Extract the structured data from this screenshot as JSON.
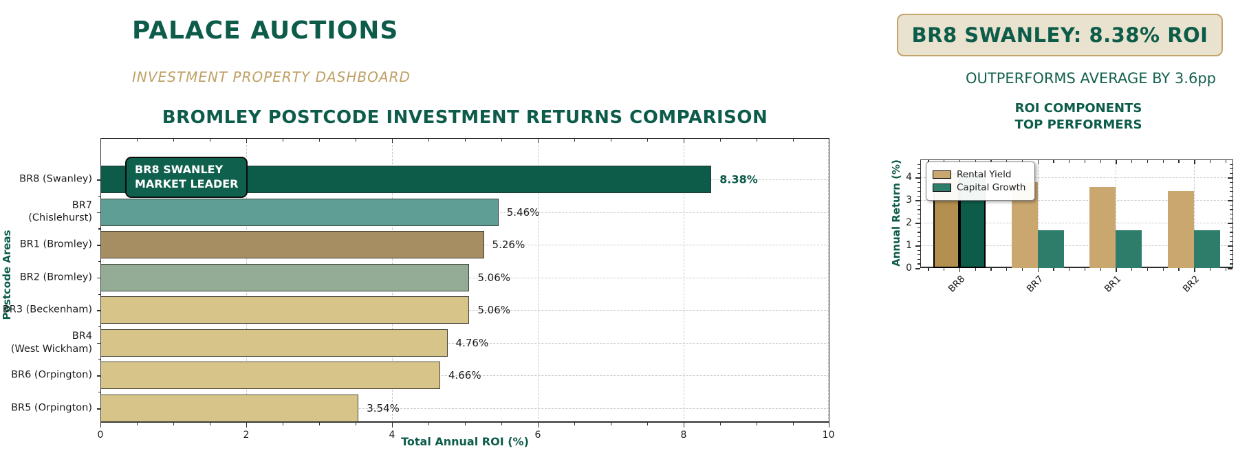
{
  "header": {
    "brand": "PALACE AUCTIONS",
    "subtitle": "INVESTMENT PROPERTY DASHBOARD",
    "highlight": "BR8 SWANLEY: 8.38% ROI",
    "highlight_note": "OUTPERFORMS AVERAGE BY 3.6pp"
  },
  "colors": {
    "brand_green": "#0d5c4a",
    "accent_tan": "#c3a469",
    "panel_bg": "#e9e2cf",
    "grid": "#c8c8c8",
    "bar_edge": "#2d2d28",
    "value_text": "#1c1c1c"
  },
  "chart_data": [
    {
      "type": "bar",
      "orientation": "horizontal",
      "title": "BROMLEY POSTCODE INVESTMENT RETURNS COMPARISON",
      "xlabel": "Total Annual ROI (%)",
      "ylabel": "Postcode Areas",
      "xlim": [
        0,
        10
      ],
      "xticks": [
        0,
        2,
        4,
        6,
        8,
        10
      ],
      "minor_tick_step": 0.5,
      "grid": "dashed",
      "categories": [
        "BR8 (Swanley)",
        "BR7\n(Chislehurst)",
        "BR1 (Bromley)",
        "BR2 (Bromley)",
        "BR3 (Beckenham)",
        "BR4\n(West Wickham)",
        "BR6 (Orpington)",
        "BR5 (Orpington)"
      ],
      "values": [
        8.38,
        5.46,
        5.26,
        5.06,
        5.06,
        4.76,
        4.66,
        3.54
      ],
      "value_labels": [
        "8.38%",
        "5.46%",
        "5.26%",
        "5.06%",
        "5.06%",
        "4.76%",
        "4.66%",
        "3.54%"
      ],
      "bar_colors": [
        "#0d5c4a",
        "#5f9e94",
        "#a68e62",
        "#94ac96",
        "#d6c488",
        "#d6c488",
        "#d6c488",
        "#d6c488"
      ],
      "annotation": "BR8 SWANLEY\nMARKET LEADER"
    },
    {
      "type": "bar",
      "orientation": "vertical",
      "title": "ROI COMPONENTS\nTOP PERFORMERS",
      "ylabel": "Annual Return (%)",
      "ylim": [
        0,
        4.8
      ],
      "yticks": [
        0,
        1,
        2,
        3,
        4
      ],
      "grid": "dashed",
      "legend_position": "upper left",
      "categories": [
        "BR8",
        "BR7",
        "BR1",
        "BR2"
      ],
      "highlight_category": "BR8",
      "series": [
        {
          "name": "Rental Yield",
          "values": [
            4.2,
            3.8,
            3.6,
            3.4
          ],
          "color": "#c9a76f",
          "highlight_color": "#b3904f"
        },
        {
          "name": "Capital Growth",
          "values": [
            4.18,
            1.66,
            1.66,
            1.66
          ],
          "color": "#2e7d6b",
          "highlight_color": "#0d5c4a"
        }
      ]
    }
  ]
}
